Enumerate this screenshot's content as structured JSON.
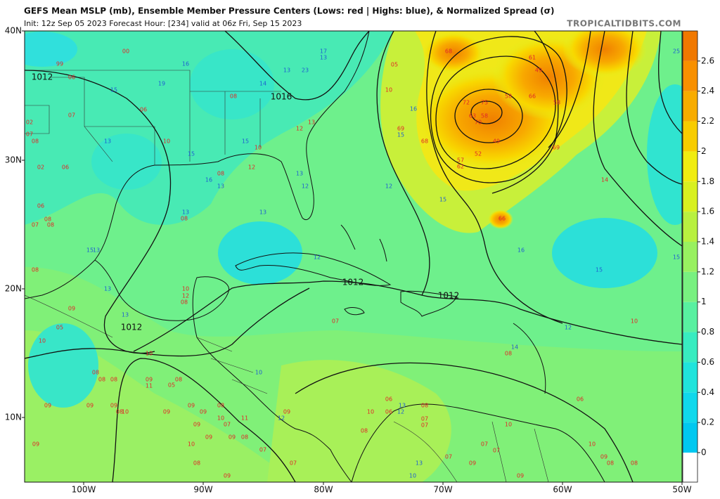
{
  "header": {
    "title": "GEFS Mean MSLP (mb), Ensemble Member Pressure Centers (Lows: red | Highs: blue), & Normalized Spread (σ)",
    "subtitle": "Init: 12z Sep 05 2023   Forecast Hour: [234]   valid at 06z Fri, Sep 15 2023",
    "credit": "TROPICALTIDBITS.COM"
  },
  "map": {
    "lat_labels": [
      "40N",
      "30N",
      "20N",
      "10N"
    ],
    "lon_labels": [
      "100W",
      "90W",
      "80W",
      "70W",
      "60W",
      "50W"
    ],
    "isobar_labels": [
      "1012",
      "1016",
      "1012",
      "1012",
      "1012"
    ],
    "low_color": "#e02828",
    "high_color": "#1f5fd0",
    "lows": [
      "00",
      "99",
      "06",
      "07",
      "06",
      "02",
      "07",
      "08",
      "02",
      "06",
      "06",
      "08",
      "07",
      "08",
      "08",
      "05",
      "10",
      "08",
      "13",
      "12",
      "10",
      "10",
      "12",
      "08",
      "08",
      "10",
      "12",
      "08",
      "09",
      "05",
      "10",
      "10",
      "07",
      "08",
      "08",
      "08",
      "09",
      "11",
      "05",
      "08",
      "09",
      "09",
      "09",
      "08",
      "10",
      "09",
      "09",
      "09",
      "08",
      "09",
      "10",
      "07",
      "11",
      "09",
      "09",
      "08",
      "10",
      "07",
      "08",
      "07",
      "09",
      "09",
      "10",
      "09",
      "08",
      "06",
      "06",
      "08",
      "07",
      "07",
      "10",
      "07",
      "07",
      "07",
      "09",
      "09",
      "08",
      "06",
      "10",
      "09",
      "08",
      "08",
      "10",
      "14",
      "68",
      "61",
      "49",
      "72",
      "58",
      "66",
      "58",
      "75",
      "63",
      "58",
      "70",
      "69",
      "68",
      "49",
      "52",
      "57",
      "62",
      "69",
      "66"
    ],
    "highs": [
      "17",
      "13",
      "16",
      "13",
      "23",
      "19",
      "15",
      "14",
      "16",
      "15",
      "13",
      "15",
      "15",
      "16",
      "13",
      "13",
      "12",
      "12",
      "15",
      "13",
      "13",
      "15",
      "13",
      "12",
      "16",
      "15",
      "15",
      "13",
      "13",
      "12",
      "14",
      "10",
      "12",
      "13",
      "12",
      "13",
      "10",
      "25"
    ]
  },
  "colorbar": {
    "range": [
      0,
      2.8
    ],
    "ticks": [
      0,
      0.2,
      0.4,
      0.6,
      0.8,
      1,
      1.2,
      1.4,
      1.6,
      1.8,
      2,
      2.2,
      2.4,
      2.6
    ],
    "colors": [
      "#00c8f0",
      "#10d8ec",
      "#20e4dc",
      "#38ecc0",
      "#58f0a0",
      "#78f080",
      "#98f060",
      "#b8f040",
      "#d8f020",
      "#f0ec10",
      "#f8cc00",
      "#f8ac00",
      "#f89000",
      "#f07800"
    ]
  }
}
